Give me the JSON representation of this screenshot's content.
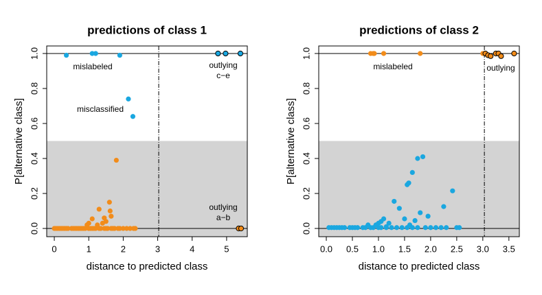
{
  "chart_data": [
    {
      "type": "scatter",
      "title": "predictions of class 1",
      "xlabel": "distance to predicted class",
      "ylabel": "P[alternative class]",
      "xlim": [
        -0.22,
        5.6
      ],
      "ylim": [
        -0.047,
        1.043
      ],
      "xticks": [
        0,
        1,
        2,
        3,
        4,
        5
      ],
      "yticks": [
        {
          "value": 0,
          "label": "0.0"
        },
        0.2,
        0.4,
        0.6,
        0.8,
        {
          "value": 1,
          "label": "1.0"
        }
      ],
      "shade_below": 0.5,
      "hlines": [
        0,
        1
      ],
      "vline": 3.03,
      "annotations": [
        [
          "mislabeled"
        ],
        [
          "outlying",
          "c−e"
        ],
        [
          "misclassified"
        ],
        [
          "outlying",
          "a−b"
        ]
      ],
      "series": [
        {
          "color": "#f28c1a",
          "x": [
            0,
            0.05,
            0.1,
            0.15,
            0.2,
            0.25,
            0.3,
            0.35,
            0.4,
            0.5,
            0.55,
            0.6,
            0.65,
            0.7,
            0.75,
            0.8,
            0.85,
            0.9,
            1.0,
            1.05,
            1.1,
            1.15,
            1.2,
            1.3,
            1.35,
            1.45,
            1.5,
            1.55,
            1.65,
            1.7,
            1.75,
            1.85,
            1.9,
            2.0,
            2.1,
            2.2,
            2.3,
            2.35,
            1.8,
            1.6,
            1.3,
            1.45,
            1.5,
            1.1,
            1.0,
            0.95,
            1.25,
            1.62,
            1.65,
            1.4
          ],
          "values": [
            0,
            0,
            0,
            0,
            0,
            0,
            0,
            0,
            0,
            0,
            0,
            0,
            0,
            0,
            0,
            0,
            0,
            0,
            0,
            0,
            0,
            0,
            0,
            0,
            0,
            0,
            0,
            0,
            0,
            0,
            0,
            0,
            0,
            0,
            0,
            0,
            0,
            0,
            0.39,
            0.15,
            0.11,
            0.06,
            0.04,
            0.055,
            0.03,
            0.02,
            0.02,
            0.1,
            0.07,
            0.03
          ]
        },
        {
          "color": "#1aa7e0",
          "x": [
            0.35,
            1.1,
            1.2,
            1.9,
            2.15,
            2.28
          ],
          "values": [
            0.99,
            1.0,
            1.0,
            0.99,
            0.74,
            0.64
          ]
        },
        {
          "color": "#1aa7e0",
          "edgecolor": "#000000",
          "x": [
            4.75,
            4.97,
            5.4
          ],
          "values": [
            1.0,
            1.0,
            1.0
          ]
        },
        {
          "color": "#f28c1a",
          "edgecolor": "#000000",
          "x": [
            5.35,
            5.42
          ],
          "values": [
            0,
            0
          ]
        }
      ]
    },
    {
      "type": "scatter",
      "title": "predictions of class 2",
      "xlabel": "distance to predicted class",
      "ylabel": "P[alternative class]",
      "xlim": [
        -0.145,
        3.7
      ],
      "ylim": [
        -0.047,
        1.043
      ],
      "xticks": [
        {
          "value": 0,
          "label": "0.0"
        },
        0.5,
        {
          "value": 1,
          "label": "1.0"
        },
        1.5,
        {
          "value": 2,
          "label": "2.0"
        },
        2.5,
        {
          "value": 3,
          "label": "3.0"
        },
        3.5
      ],
      "yticks": [
        {
          "value": 0,
          "label": "0.0"
        },
        0.2,
        0.4,
        0.6,
        0.8,
        {
          "value": 1,
          "label": "1.0"
        }
      ],
      "shade_below": 0.5,
      "hlines": [
        0,
        1
      ],
      "vline": 3.03,
      "annotations": [
        [
          "mislabeled"
        ],
        [
          "outlying"
        ]
      ],
      "series": [
        {
          "color": "#1aa7e0",
          "x": [
            0.05,
            0.1,
            0.15,
            0.2,
            0.25,
            0.3,
            0.35,
            0.45,
            0.5,
            0.55,
            0.6,
            0.7,
            0.75,
            0.85,
            0.9,
            1.0,
            1.05,
            1.15,
            1.25,
            1.35,
            1.45,
            1.55,
            1.65,
            1.75,
            1.9,
            2.0,
            2.1,
            2.2,
            2.3,
            2.5,
            2.55,
            1.75,
            1.85,
            1.65,
            1.55,
            1.58,
            2.42,
            1.3,
            1.4,
            2.25,
            1.8,
            1.95,
            1.5,
            1.1,
            1.05,
            1.2,
            1.15,
            0.95,
            1.0,
            1.6,
            0.8,
            1.7
          ],
          "values": [
            0.005,
            0.005,
            0.005,
            0.005,
            0.005,
            0.005,
            0.005,
            0.005,
            0.005,
            0.005,
            0.005,
            0.005,
            0.005,
            0.005,
            0.005,
            0.005,
            0.005,
            0.005,
            0.005,
            0.005,
            0.005,
            0.005,
            0.005,
            0.005,
            0.005,
            0.005,
            0.005,
            0.005,
            0.005,
            0.005,
            0.005,
            0.4,
            0.41,
            0.32,
            0.25,
            0.26,
            0.215,
            0.155,
            0.115,
            0.125,
            0.09,
            0.07,
            0.055,
            0.055,
            0.04,
            0.03,
            0.01,
            0.02,
            0.03,
            0.02,
            0.02,
            0.045
          ]
        },
        {
          "color": "#f28c1a",
          "x": [
            0.85,
            0.9,
            0.92,
            1.1,
            1.8,
            3.0
          ],
          "values": [
            1.0,
            1.0,
            1.0,
            1.0,
            1.0,
            1.0
          ]
        },
        {
          "color": "#f28c1a",
          "edgecolor": "#000000",
          "x": [
            3.05,
            3.1,
            3.15,
            3.25,
            3.3,
            3.35,
            3.6
          ],
          "values": [
            1.0,
            0.99,
            0.985,
            1.0,
            1.0,
            0.985,
            1.0
          ]
        }
      ]
    }
  ]
}
